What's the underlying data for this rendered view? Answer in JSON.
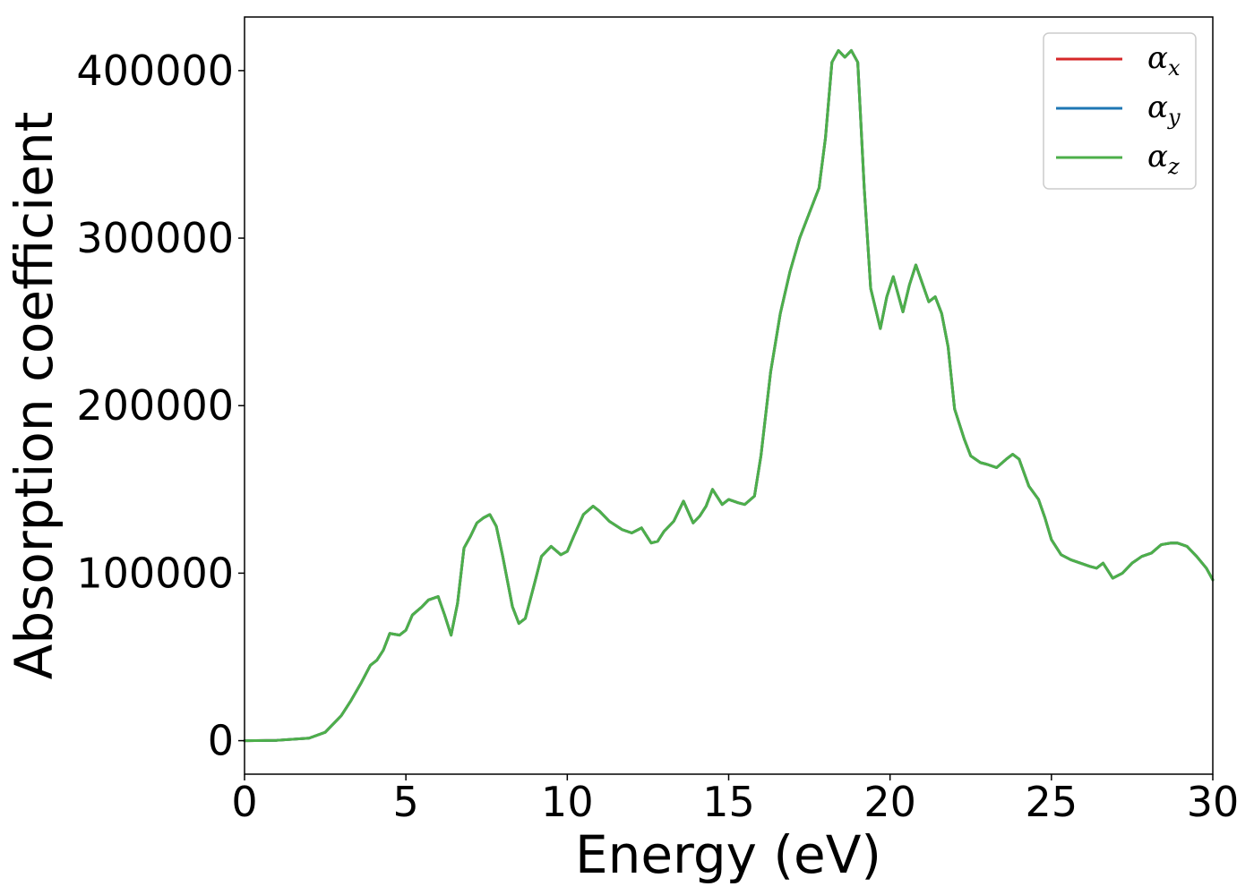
{
  "chart_data": {
    "type": "line",
    "title": "",
    "xlabel": "Energy (eV)",
    "ylabel": "Absorption coefficient",
    "xlim": [
      0,
      30
    ],
    "ylim": [
      -20000,
      432000
    ],
    "xticks": [
      "0",
      "5",
      "10",
      "15",
      "20",
      "25",
      "30"
    ],
    "yticks": [
      "0",
      "100000",
      "200000",
      "300000",
      "400000"
    ],
    "grid": false,
    "legend_position": "top-right",
    "x": [
      0,
      1,
      2,
      2.5,
      2.7,
      3.0,
      3.3,
      3.6,
      3.9,
      4.1,
      4.3,
      4.5,
      4.8,
      5.0,
      5.2,
      5.5,
      5.7,
      6.0,
      6.2,
      6.4,
      6.6,
      6.8,
      7.0,
      7.2,
      7.4,
      7.6,
      7.8,
      8.0,
      8.3,
      8.5,
      8.7,
      9.0,
      9.2,
      9.5,
      9.8,
      10.0,
      10.2,
      10.5,
      10.8,
      11.0,
      11.3,
      11.7,
      12.0,
      12.3,
      12.6,
      12.8,
      13.0,
      13.3,
      13.6,
      13.9,
      14.1,
      14.3,
      14.5,
      14.8,
      15.0,
      15.3,
      15.5,
      15.8,
      16.0,
      16.3,
      16.6,
      16.9,
      17.2,
      17.5,
      17.8,
      18.0,
      18.2,
      18.4,
      18.6,
      18.8,
      19.0,
      19.2,
      19.4,
      19.7,
      19.9,
      20.1,
      20.4,
      20.6,
      20.8,
      21.0,
      21.2,
      21.4,
      21.6,
      21.8,
      22.0,
      22.3,
      22.5,
      22.8,
      23.0,
      23.3,
      23.6,
      23.8,
      24.0,
      24.3,
      24.6,
      24.8,
      25.0,
      25.3,
      25.6,
      25.9,
      26.2,
      26.4,
      26.6,
      26.9,
      27.2,
      27.5,
      27.8,
      28.1,
      28.4,
      28.7,
      28.9,
      29.2,
      29.5,
      29.8,
      30.0
    ],
    "series": [
      {
        "name": "α_x",
        "label_base": "α",
        "label_sub": "x",
        "color": "#d62728",
        "values": [
          0,
          200,
          1500,
          5000,
          9000,
          15000,
          24000,
          34000,
          45000,
          48000,
          54000,
          64000,
          63000,
          66000,
          75000,
          80000,
          84000,
          86000,
          75000,
          63000,
          82000,
          115000,
          122000,
          130000,
          133000,
          135000,
          128000,
          110000,
          80000,
          70000,
          73000,
          95000,
          110000,
          116000,
          111000,
          113000,
          122000,
          135000,
          140000,
          137000,
          131000,
          126000,
          124000,
          127000,
          118000,
          119000,
          125000,
          131000,
          143000,
          130000,
          134000,
          140000,
          150000,
          141000,
          144000,
          142000,
          141000,
          146000,
          170000,
          220000,
          255000,
          280000,
          300000,
          315000,
          330000,
          360000,
          405000,
          412000,
          408000,
          412000,
          405000,
          330000,
          270000,
          246000,
          265000,
          277000,
          256000,
          272000,
          284000,
          273000,
          262000,
          265000,
          255000,
          235000,
          198000,
          180000,
          170000,
          166000,
          165000,
          163000,
          168000,
          171000,
          168000,
          152000,
          144000,
          133000,
          120000,
          111000,
          108000,
          106000,
          104000,
          103000,
          106000,
          97000,
          100000,
          106000,
          110000,
          112000,
          117000,
          118000,
          118000,
          116000,
          110000,
          103000,
          96000
        ]
      },
      {
        "name": "α_y",
        "label_base": "α",
        "label_sub": "y",
        "color": "#1f77b4",
        "values": [
          0,
          200,
          1500,
          5000,
          9000,
          15000,
          24000,
          34000,
          45000,
          48000,
          54000,
          64000,
          63000,
          66000,
          75000,
          80000,
          84000,
          86000,
          75000,
          63000,
          82000,
          115000,
          122000,
          130000,
          133000,
          135000,
          128000,
          110000,
          80000,
          70000,
          73000,
          95000,
          110000,
          116000,
          111000,
          113000,
          122000,
          135000,
          140000,
          137000,
          131000,
          126000,
          124000,
          127000,
          118000,
          119000,
          125000,
          131000,
          143000,
          130000,
          134000,
          140000,
          150000,
          141000,
          144000,
          142000,
          141000,
          146000,
          170000,
          220000,
          255000,
          280000,
          300000,
          315000,
          330000,
          360000,
          405000,
          412000,
          408000,
          412000,
          405000,
          330000,
          270000,
          246000,
          265000,
          277000,
          256000,
          272000,
          284000,
          273000,
          262000,
          265000,
          255000,
          235000,
          198000,
          180000,
          170000,
          166000,
          165000,
          163000,
          168000,
          171000,
          168000,
          152000,
          144000,
          133000,
          120000,
          111000,
          108000,
          106000,
          104000,
          103000,
          106000,
          97000,
          100000,
          106000,
          110000,
          112000,
          117000,
          118000,
          118000,
          116000,
          110000,
          103000,
          96000
        ]
      },
      {
        "name": "α_z",
        "label_base": "α",
        "label_sub": "z",
        "color": "#4daf4a",
        "values": [
          0,
          200,
          1500,
          5000,
          9000,
          15000,
          24000,
          34000,
          45000,
          48000,
          54000,
          64000,
          63000,
          66000,
          75000,
          80000,
          84000,
          86000,
          75000,
          63000,
          82000,
          115000,
          122000,
          130000,
          133000,
          135000,
          128000,
          110000,
          80000,
          70000,
          73000,
          95000,
          110000,
          116000,
          111000,
          113000,
          122000,
          135000,
          140000,
          137000,
          131000,
          126000,
          124000,
          127000,
          118000,
          119000,
          125000,
          131000,
          143000,
          130000,
          134000,
          140000,
          150000,
          141000,
          144000,
          142000,
          141000,
          146000,
          170000,
          220000,
          255000,
          280000,
          300000,
          315000,
          330000,
          360000,
          405000,
          412000,
          408000,
          412000,
          405000,
          330000,
          270000,
          246000,
          265000,
          277000,
          256000,
          272000,
          284000,
          273000,
          262000,
          265000,
          255000,
          235000,
          198000,
          180000,
          170000,
          166000,
          165000,
          163000,
          168000,
          171000,
          168000,
          152000,
          144000,
          133000,
          120000,
          111000,
          108000,
          106000,
          104000,
          103000,
          106000,
          97000,
          100000,
          106000,
          110000,
          112000,
          117000,
          118000,
          118000,
          116000,
          110000,
          103000,
          96000
        ]
      }
    ]
  }
}
